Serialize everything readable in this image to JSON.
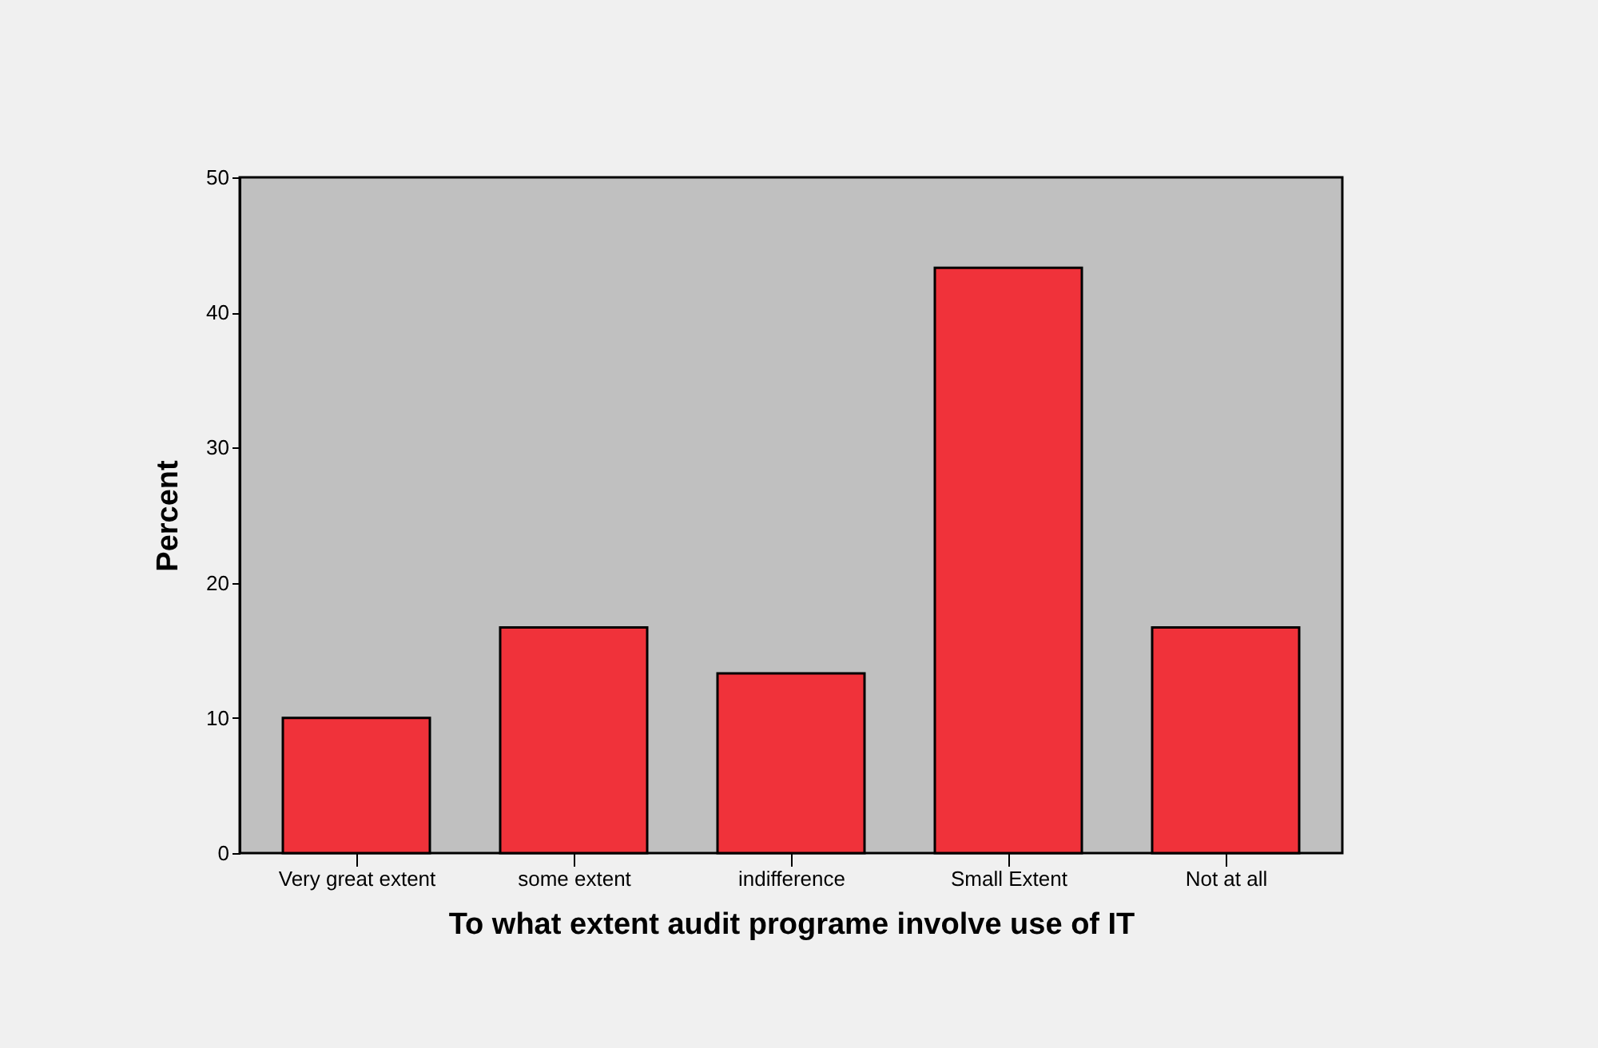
{
  "chart_data": {
    "type": "bar",
    "xlabel": "To what extent audit programe involve use of IT",
    "ylabel": "Percent",
    "categories": [
      "Very great extent",
      "some extent",
      "indifference",
      "Small Extent",
      "Not at all"
    ],
    "values": [
      10,
      16.7,
      13.3,
      43.3,
      16.7
    ],
    "color": "#f0323a",
    "ylim": [
      0,
      50
    ],
    "yticks": [
      0,
      10,
      20,
      30,
      40,
      50
    ],
    "grid": false,
    "legend": false
  }
}
